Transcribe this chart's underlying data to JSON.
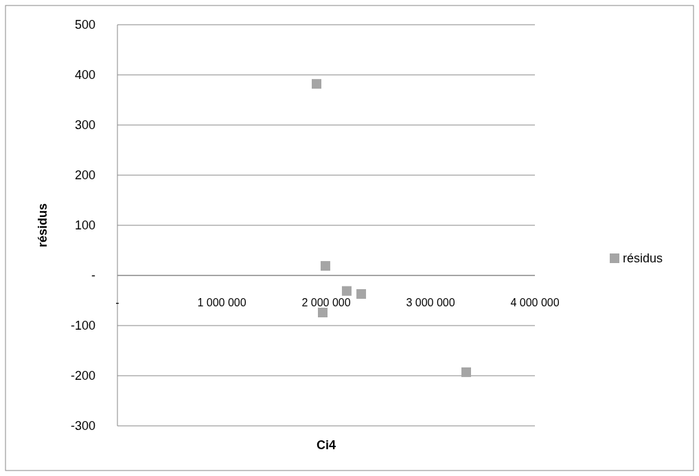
{
  "chart_data": {
    "type": "scatter",
    "xlabel": "Ci4",
    "ylabel": "résidus",
    "x": [
      1908000,
      1993000,
      1967000,
      2197000,
      2336000,
      3342000
    ],
    "series": [
      {
        "name": "résidus",
        "color": "#a5a5a5",
        "values": [
          382,
          19,
          -74,
          -31,
          -37,
          -193
        ]
      }
    ],
    "xlim": [
      0,
      4000000
    ],
    "xticks": [
      {
        "value": 0,
        "label": "-"
      },
      {
        "value": 1000000,
        "label": "1 000 000"
      },
      {
        "value": 2000000,
        "label": "2 000 000"
      },
      {
        "value": 3000000,
        "label": "3 000 000"
      },
      {
        "value": 4000000,
        "label": "4 000 000"
      }
    ],
    "ylim": [
      -300,
      500
    ],
    "yticks": [
      -300,
      -200,
      -100,
      {
        "value": 0,
        "label": "-"
      },
      100,
      200,
      300,
      400,
      500
    ],
    "grid": "y",
    "legend": "right",
    "marker": "square"
  }
}
